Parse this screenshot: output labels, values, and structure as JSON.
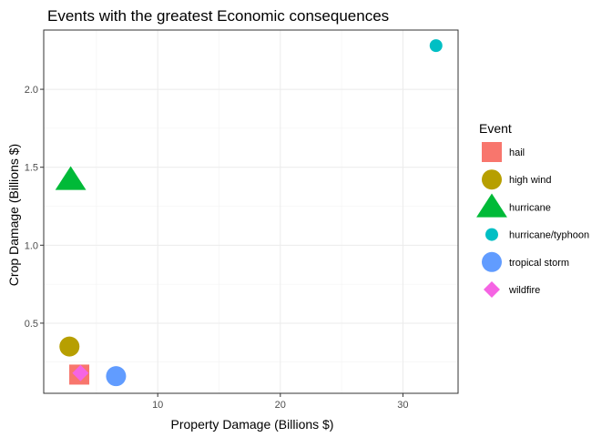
{
  "chart_data": {
    "type": "scatter",
    "title": "Events with the greatest Economic consequences",
    "xlabel": "Property Damage (Billions $)",
    "ylabel": "Crop Damage (Billions $)",
    "xlim": [
      0.7,
      34.5
    ],
    "ylim": [
      0.05,
      2.38
    ],
    "x_ticks": [
      10,
      20,
      30
    ],
    "y_ticks": [
      0.5,
      1.0,
      1.5,
      2.0
    ],
    "y_tick_labels": [
      "0.5",
      "1.0",
      "1.5",
      "2.0"
    ],
    "grid": true,
    "legend_position": "right",
    "legend_title": "Event",
    "series": [
      {
        "name": "hail",
        "shape": "square",
        "color": "#F8766D",
        "x": 3.6,
        "y": 0.17,
        "size": 11
      },
      {
        "name": "high wind",
        "shape": "circle",
        "color": "#B79F00",
        "x": 2.8,
        "y": 0.35,
        "size": 11
      },
      {
        "name": "hurricane",
        "shape": "triangle",
        "color": "#00BA38",
        "x": 2.9,
        "y": 1.42,
        "size": 13
      },
      {
        "name": "hurricane/typhoon",
        "shape": "circle",
        "color": "#00BFC4",
        "x": 32.7,
        "y": 2.28,
        "size": 7
      },
      {
        "name": "tropical storm",
        "shape": "circle",
        "color": "#619CFF",
        "x": 6.6,
        "y": 0.16,
        "size": 11
      },
      {
        "name": "wildfire",
        "shape": "diamond",
        "color": "#F564E3",
        "x": 3.7,
        "y": 0.18,
        "size": 9
      }
    ]
  }
}
